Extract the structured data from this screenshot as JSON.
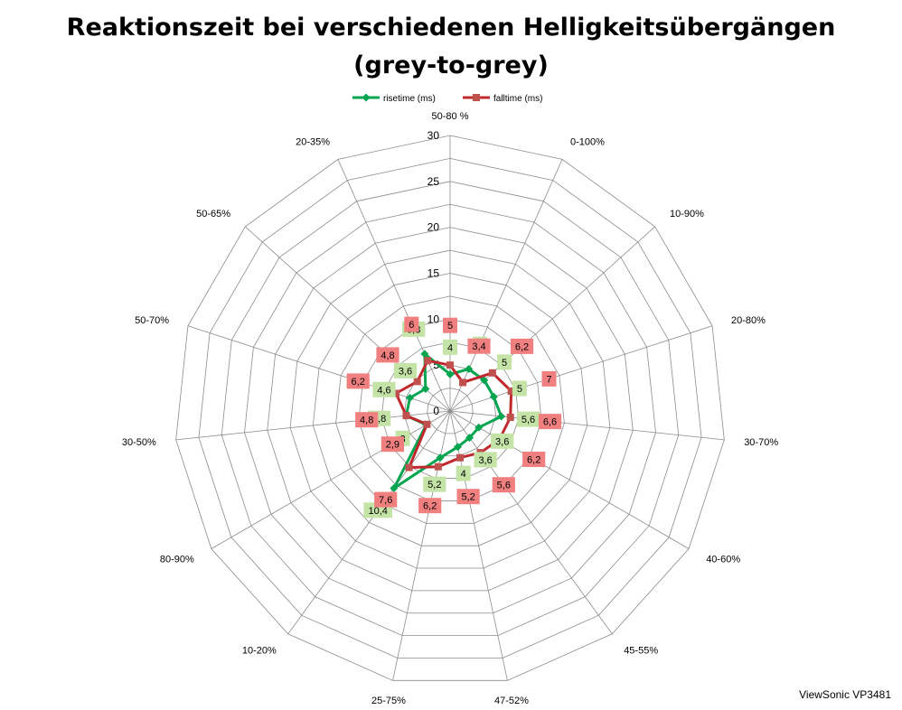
{
  "chart_data": {
    "type": "radar",
    "title_line1": "Reaktionszeit bei verschiedenen Helligkeitsübergängen",
    "title_line2": "(grey-to-grey)",
    "categories": [
      "50-80 %",
      "0-100%",
      "10-90%",
      "20-80%",
      "30-70%",
      "40-60%",
      "45-55%",
      "47-52%",
      "25-75%",
      "10-20%",
      "80-90%",
      "30-50%",
      "50-70%",
      "50-65%",
      "20-35%"
    ],
    "rlim": [
      0,
      30
    ],
    "ticks": [
      0,
      5,
      10,
      15,
      20,
      25,
      30
    ],
    "grid": true,
    "legend_position": "top",
    "series": [
      {
        "name": "risetime (ms)",
        "color": "#00a550",
        "label_bg": "#c4e3a6",
        "values": [
          4,
          5,
          5,
          5,
          5.6,
          3.6,
          3.6,
          4,
          5.2,
          10.4,
          3,
          4.8,
          4.6,
          3.6,
          6.8
        ],
        "labels": [
          "4",
          "5",
          "5",
          "5",
          "5,6",
          "3,6",
          "3,6",
          "4",
          "5,2",
          "10,4",
          "3",
          "4,8",
          "4,6",
          "3,6",
          "6,8"
        ]
      },
      {
        "name": "falltime (ms)",
        "color": "#c0282d",
        "label_bg": "#f08080",
        "values": [
          5,
          3.4,
          6.2,
          7,
          6.6,
          6.2,
          5.6,
          5.2,
          6.2,
          7.6,
          2.9,
          4.8,
          6.2,
          4.8,
          6
        ],
        "labels": [
          "5",
          "3,4",
          "6,2",
          "7",
          "6,6",
          "6,2",
          "5,6",
          "5,2",
          "6,2",
          "7,6",
          "2,9",
          "4,8",
          "6,2",
          "4,8",
          "6"
        ]
      }
    ]
  },
  "footer": {
    "note": "ViewSonic VP3481"
  }
}
